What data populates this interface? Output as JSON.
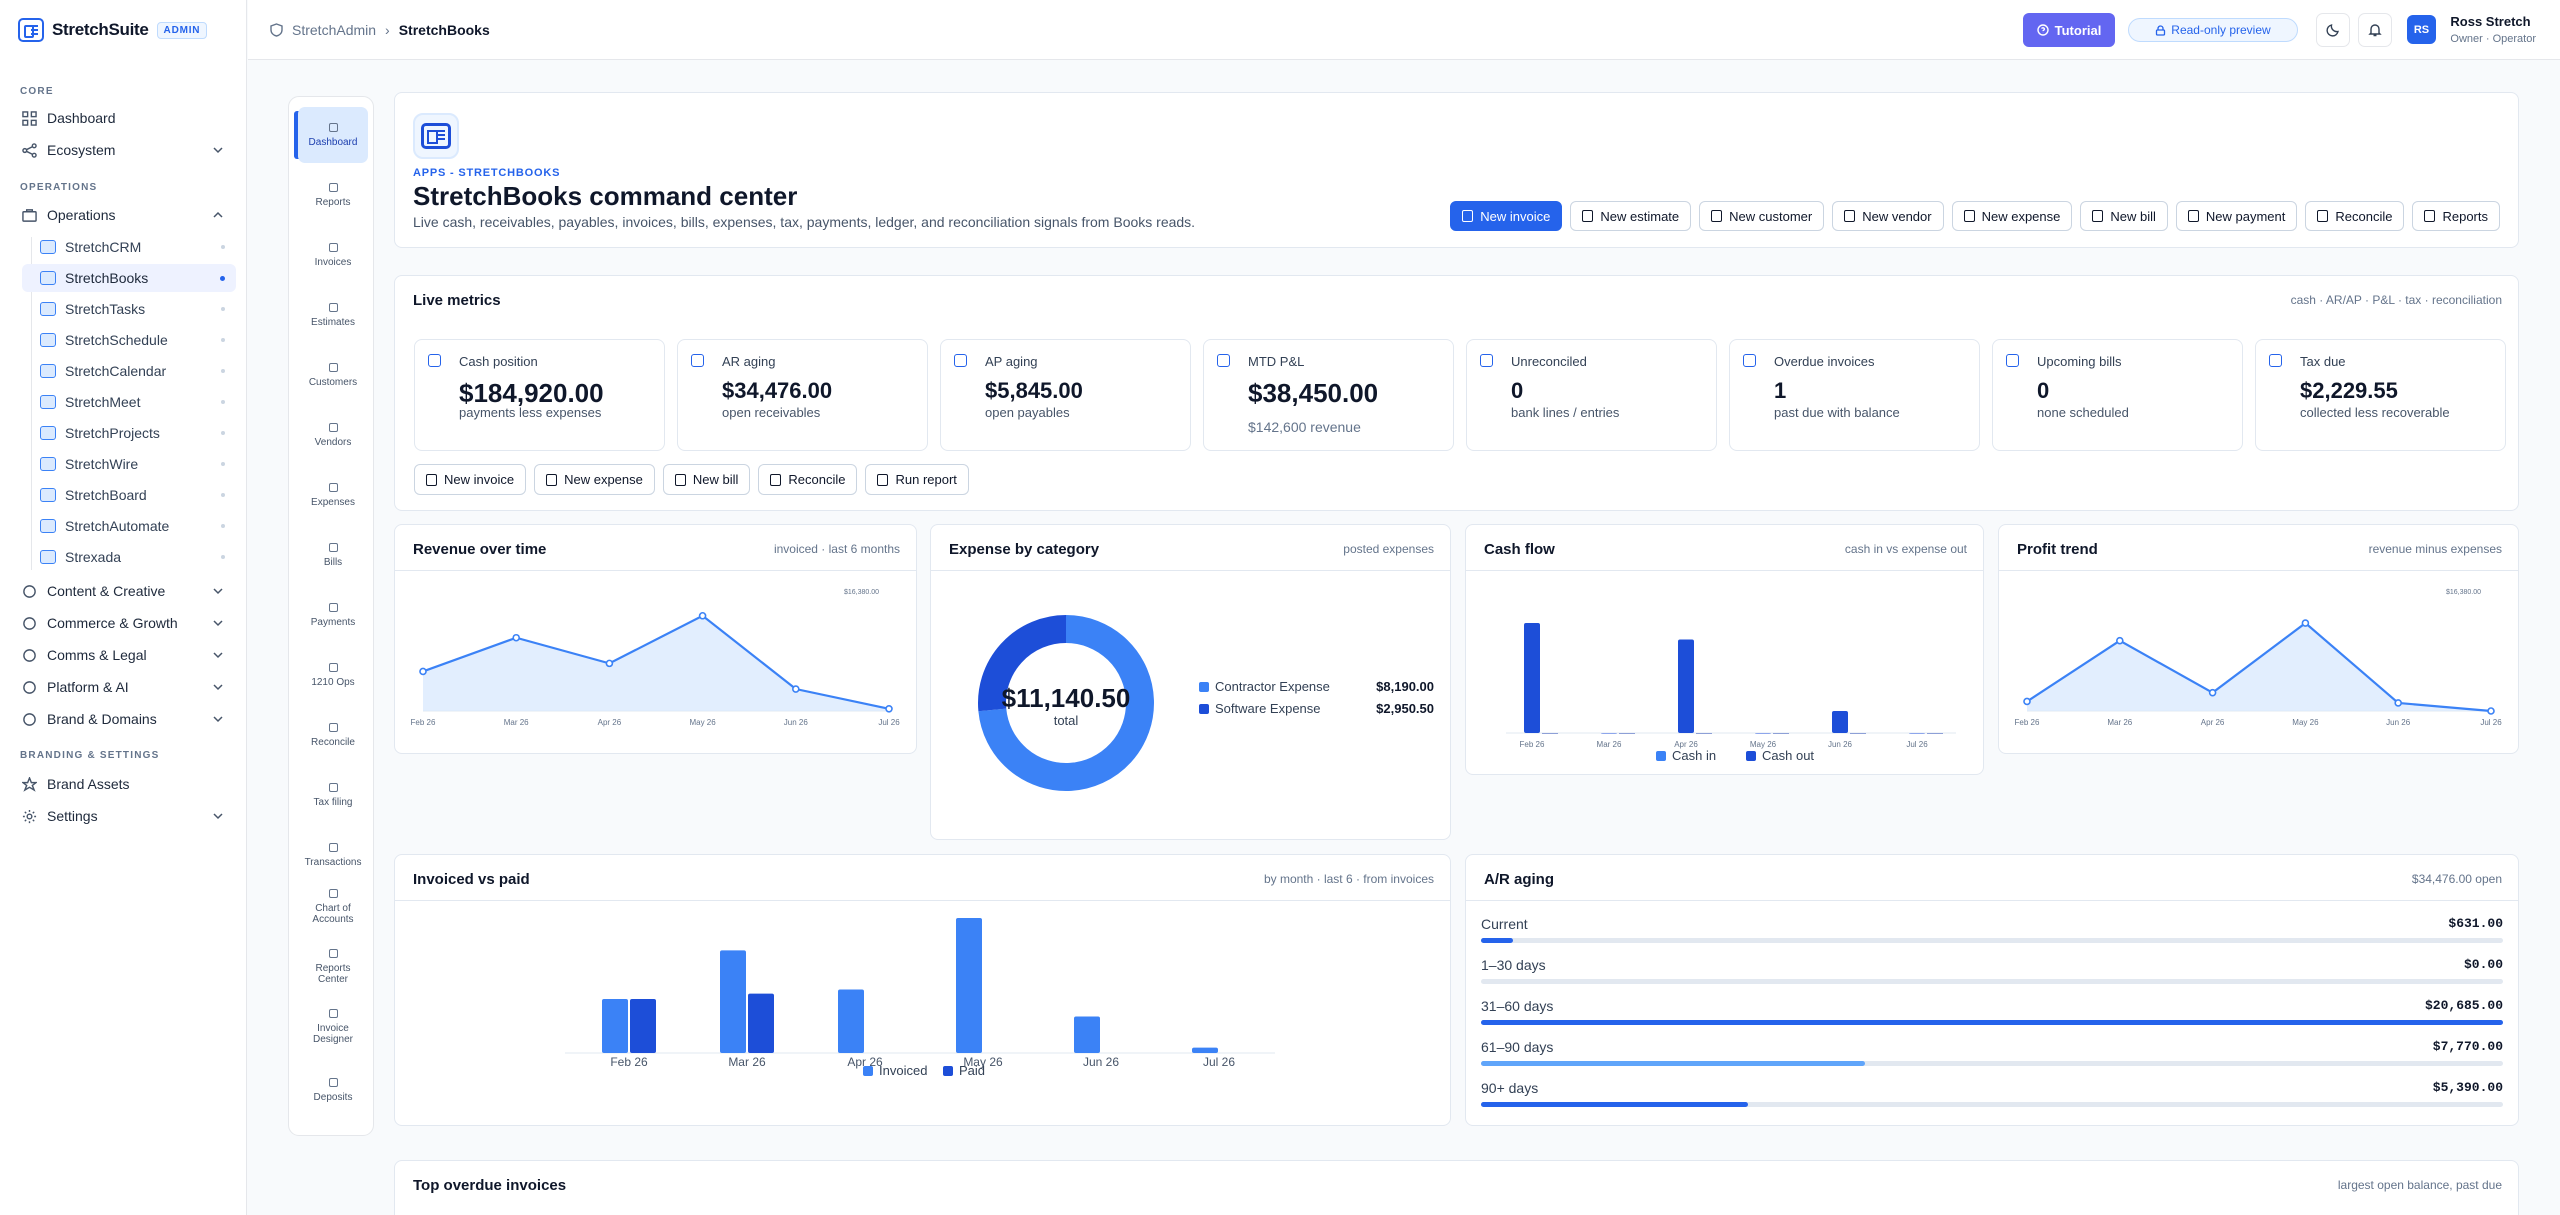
{
  "brand": {
    "name": "StretchSuite",
    "badge": "ADMIN"
  },
  "sidebar": {
    "core_label": "CORE",
    "dashboard": "Dashboard",
    "ecosystem": "Ecosystem",
    "operations_label": "OPERATIONS",
    "operations": "Operations",
    "apps": [
      "StretchCRM",
      "StretchBooks",
      "StretchTasks",
      "StretchSchedule",
      "StretchCalendar",
      "StretchMeet",
      "StretchProjects",
      "StretchWire",
      "StretchBoard",
      "StretchAutomate",
      "Strexada"
    ],
    "groups": [
      "Content & Creative",
      "Commerce & Growth",
      "Comms & Legal",
      "Platform & AI",
      "Brand & Domains"
    ],
    "branding_label": "BRANDING & SETTINGS",
    "brand_assets": "Brand Assets",
    "settings": "Settings"
  },
  "topbar": {
    "breadcrumb_root": "StretchAdmin",
    "breadcrumb_current": "StretchBooks",
    "tutorial": "Tutorial",
    "preview": "Read-only preview",
    "avatar": "RS",
    "user_name": "Ross Stretch",
    "user_role": "Owner · Operator"
  },
  "rail": [
    "Dashboard",
    "Reports",
    "Invoices",
    "Estimates",
    "Customers",
    "Vendors",
    "Expenses",
    "Bills",
    "Payments",
    "1210 Ops",
    "Reconcile",
    "Tax filing",
    "Transactions",
    "Chart of Accounts",
    "Reports Center",
    "Invoice Designer",
    "Deposits"
  ],
  "hero": {
    "eyebrow": "APPS - STRETCHBOOKS",
    "title": "StretchBooks command center",
    "lead": "Live cash, receivables, payables, invoices, bills, expenses, tax, payments, ledger, and reconciliation signals from Books reads.",
    "actions": [
      "New invoice",
      "New estimate",
      "New customer",
      "New vendor",
      "New expense",
      "New bill",
      "New payment",
      "Reconcile",
      "Reports"
    ]
  },
  "live": {
    "title": "Live metrics",
    "meta": "cash · AR/AP · P&L · tax · reconciliation",
    "metrics": [
      {
        "label": "Cash position",
        "value": "$184,920.00",
        "sub": "payments less expenses"
      },
      {
        "label": "AR aging",
        "value": "$34,476.00",
        "sub": "open receivables"
      },
      {
        "label": "AP aging",
        "value": "$5,845.00",
        "sub": "open payables"
      },
      {
        "label": "MTD P&L",
        "value": "$38,450.00",
        "sub": "$142,600 revenue"
      },
      {
        "label": "Unreconciled",
        "value": "0",
        "sub": "bank lines / entries"
      },
      {
        "label": "Overdue invoices",
        "value": "1",
        "sub": "past due with balance"
      },
      {
        "label": "Upcoming bills",
        "value": "0",
        "sub": "none scheduled"
      },
      {
        "label": "Tax due",
        "value": "$2,229.55",
        "sub": "collected less recoverable"
      }
    ],
    "quick": [
      "New invoice",
      "New expense",
      "New bill",
      "Reconcile",
      "Run report"
    ]
  },
  "charts": {
    "revenue": {
      "title": "Revenue over time",
      "meta": "invoiced · last 6 months"
    },
    "expense": {
      "title": "Expense by category",
      "meta": "posted expenses",
      "center_value": "$11,140.50",
      "center_label": "total"
    },
    "cashflow": {
      "title": "Cash flow",
      "meta": "cash in vs expense out"
    },
    "profit": {
      "title": "Profit trend",
      "meta": "revenue minus expenses"
    },
    "invpaid": {
      "title": "Invoiced vs paid",
      "meta": "by month · last 6 · from invoices"
    },
    "aging": {
      "title": "A/R aging",
      "meta": "$34,476.00 open"
    }
  },
  "chart_data": [
    {
      "type": "area",
      "title": "Revenue over time",
      "x": [
        "Feb 26",
        "Mar 26",
        "Apr 26",
        "May 26",
        "Jun 26",
        "Jul 26"
      ],
      "values": [
        5400,
        10000,
        6500,
        13000,
        3000,
        300
      ],
      "max_label": "$16,380.00",
      "ylim": [
        0,
        16380
      ]
    },
    {
      "type": "pie",
      "title": "Expense by category",
      "categories": [
        "Contractor Expense",
        "Software Expense"
      ],
      "values": [
        8190,
        2950.5
      ],
      "value_labels": [
        "$8,190.00",
        "$2,950.50"
      ]
    },
    {
      "type": "bar",
      "title": "Cash flow",
      "categories": [
        "Feb 26",
        "Mar 26",
        "Apr 26",
        "May 26",
        "Jun 26",
        "Jul 26"
      ],
      "series": [
        {
          "name": "Cash in",
          "values": [
            100,
            0,
            85,
            0,
            20,
            0
          ]
        },
        {
          "name": "Cash out",
          "values": [
            0,
            0,
            0,
            0,
            0,
            0
          ]
        }
      ]
    },
    {
      "type": "area",
      "title": "Profit trend",
      "x": [
        "Feb 26",
        "Mar 26",
        "Apr 26",
        "May 26",
        "Jun 26",
        "Jul 26"
      ],
      "values": [
        1300,
        9600,
        2500,
        12000,
        1100,
        0
      ],
      "max_label": "$16,380.00",
      "ylim": [
        0,
        16380
      ]
    },
    {
      "type": "bar",
      "title": "Invoiced vs paid",
      "categories": [
        "Feb 26",
        "Mar 26",
        "Apr 26",
        "May 26",
        "Jun 26",
        "Jul 26"
      ],
      "series": [
        {
          "name": "Invoiced",
          "values": [
            40,
            76,
            47,
            100,
            27,
            4
          ]
        },
        {
          "name": "Paid",
          "values": [
            40,
            44,
            0,
            0,
            0,
            0
          ]
        }
      ]
    },
    {
      "type": "bar",
      "title": "A/R aging",
      "categories": [
        "Current",
        "1–30 days",
        "31–60 days",
        "61–90 days",
        "90+ days"
      ],
      "value_labels": [
        "$631.00",
        "$0.00",
        "$20,685.00",
        "$7,770.00",
        "$5,390.00"
      ],
      "fractions": [
        0.031,
        0,
        1,
        0.376,
        0.261
      ]
    }
  ],
  "overdue": {
    "title": "Top overdue invoices",
    "meta": "largest open balance, past due"
  },
  "colors": {
    "accent": "#2563eb",
    "purple": "#6366f1",
    "light_blue": "#60a5fa"
  }
}
